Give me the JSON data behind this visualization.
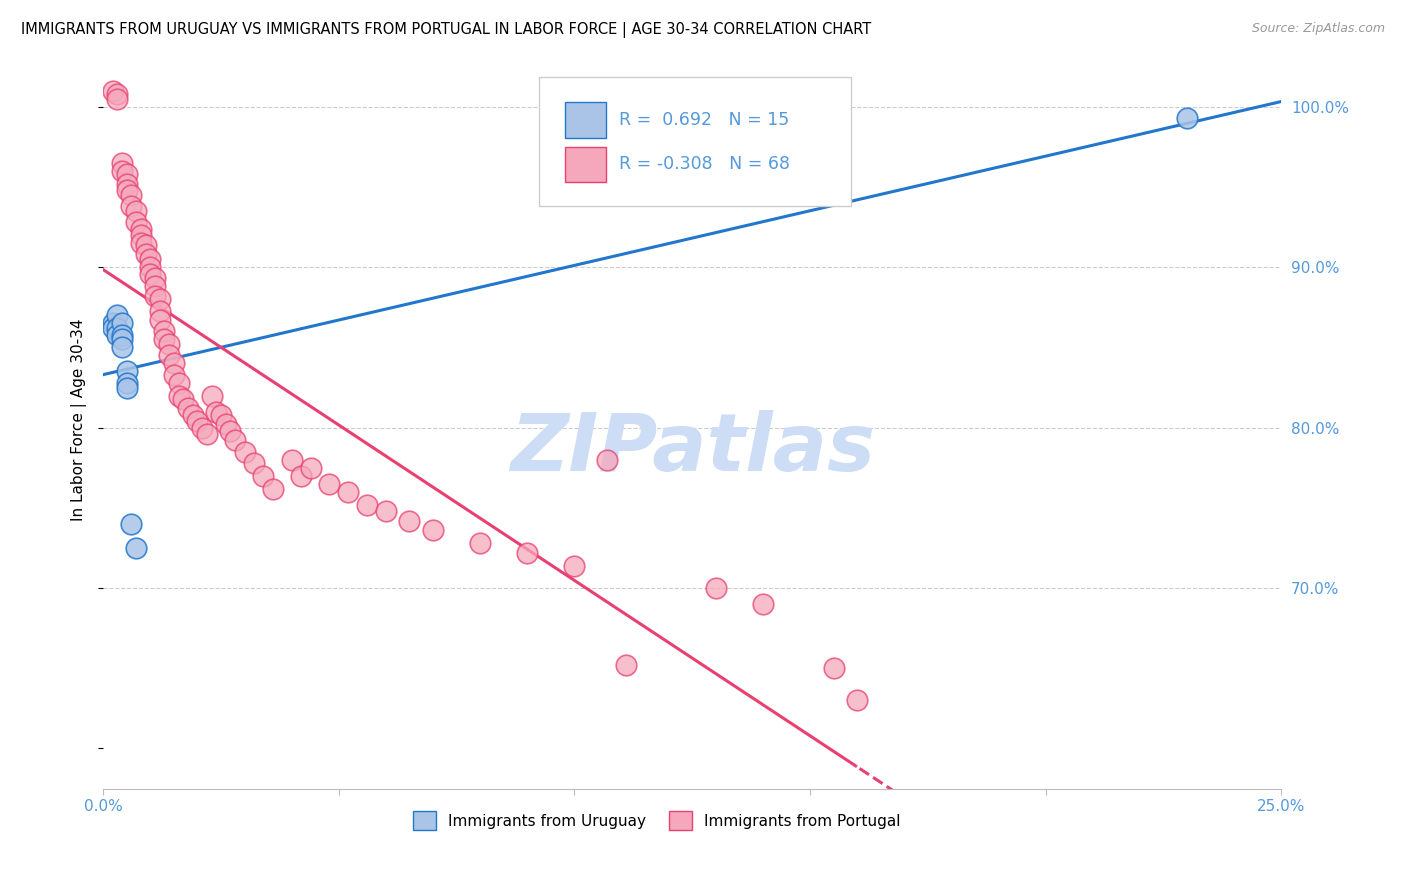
{
  "title": "IMMIGRANTS FROM URUGUAY VS IMMIGRANTS FROM PORTUGAL IN LABOR FORCE | AGE 30-34 CORRELATION CHART",
  "source": "Source: ZipAtlas.com",
  "ylabel": "In Labor Force | Age 30-34",
  "xlim": [
    0.0,
    0.25
  ],
  "ylim": [
    0.575,
    1.035
  ],
  "xticks": [
    0.0,
    0.05,
    0.1,
    0.15,
    0.2,
    0.25
  ],
  "xticklabels": [
    "0.0%",
    "",
    "",
    "",
    "",
    "25.0%"
  ],
  "yticks_right": [
    1.0,
    0.9,
    0.8,
    0.7
  ],
  "yticklabels_right": [
    "100.0%",
    "90.0%",
    "80.0%",
    "70.0%"
  ],
  "legend_r_uruguay": "0.692",
  "legend_n_uruguay": "15",
  "legend_r_portugal": "-0.308",
  "legend_n_portugal": "68",
  "uruguay_color": "#aac4e8",
  "portugal_color": "#f5a8bc",
  "line_uruguay_color": "#2277cc",
  "line_portugal_color": "#e84070",
  "watermark": "ZIPatlas",
  "watermark_color": "#ccddf5",
  "background_color": "#ffffff",
  "axis_label_color": "#5599dd",
  "uruguay_x": [
    0.002,
    0.002,
    0.003,
    0.003,
    0.003,
    0.004,
    0.004,
    0.004,
    0.004,
    0.005,
    0.005,
    0.005,
    0.006,
    0.007,
    0.23
  ],
  "uruguay_y": [
    0.865,
    0.862,
    0.87,
    0.862,
    0.858,
    0.865,
    0.858,
    0.855,
    0.85,
    0.835,
    0.828,
    0.825,
    0.74,
    0.725,
    0.993
  ],
  "portugal_x": [
    0.002,
    0.003,
    0.003,
    0.004,
    0.004,
    0.005,
    0.005,
    0.005,
    0.006,
    0.006,
    0.007,
    0.007,
    0.008,
    0.008,
    0.008,
    0.009,
    0.009,
    0.01,
    0.01,
    0.01,
    0.011,
    0.011,
    0.011,
    0.012,
    0.012,
    0.012,
    0.013,
    0.013,
    0.014,
    0.014,
    0.015,
    0.015,
    0.016,
    0.016,
    0.017,
    0.018,
    0.019,
    0.02,
    0.021,
    0.022,
    0.023,
    0.024,
    0.025,
    0.026,
    0.027,
    0.028,
    0.03,
    0.032,
    0.034,
    0.036,
    0.04,
    0.042,
    0.044,
    0.048,
    0.052,
    0.056,
    0.06,
    0.065,
    0.07,
    0.08,
    0.09,
    0.1,
    0.107,
    0.111,
    0.13,
    0.14,
    0.155,
    0.16
  ],
  "portugal_y": [
    1.01,
    1.008,
    1.005,
    0.965,
    0.96,
    0.958,
    0.952,
    0.948,
    0.945,
    0.938,
    0.935,
    0.928,
    0.924,
    0.92,
    0.915,
    0.914,
    0.908,
    0.905,
    0.9,
    0.896,
    0.893,
    0.888,
    0.882,
    0.88,
    0.873,
    0.867,
    0.86,
    0.855,
    0.852,
    0.845,
    0.84,
    0.833,
    0.828,
    0.82,
    0.818,
    0.812,
    0.808,
    0.804,
    0.8,
    0.796,
    0.82,
    0.81,
    0.808,
    0.802,
    0.798,
    0.792,
    0.785,
    0.778,
    0.77,
    0.762,
    0.78,
    0.77,
    0.775,
    0.765,
    0.76,
    0.752,
    0.748,
    0.742,
    0.736,
    0.728,
    0.722,
    0.714,
    0.78,
    0.652,
    0.7,
    0.69,
    0.65,
    0.63
  ]
}
